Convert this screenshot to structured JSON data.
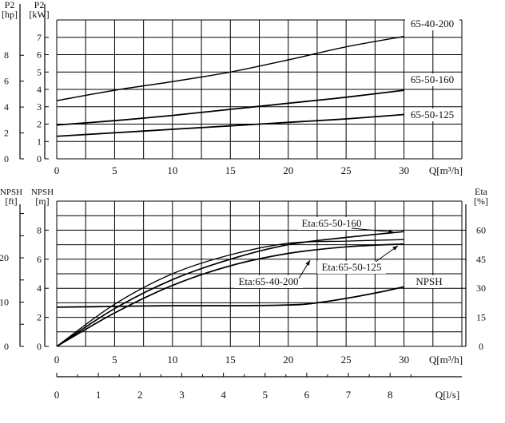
{
  "chart_data": [
    {
      "type": "line",
      "panel": "power",
      "left_units": {
        "top": "P2",
        "bottom": "[hp]"
      },
      "right_units": {
        "top": "P2",
        "bottom": "[kW]"
      },
      "x_label": "Q[m³/h]",
      "x_ticks": [
        0,
        5,
        10,
        15,
        20,
        25,
        30
      ],
      "y_ticks": [
        0,
        1,
        2,
        3,
        4,
        5,
        6,
        7
      ],
      "hp_ticks": [
        0,
        2,
        4,
        6,
        8
      ],
      "xlim": [
        0,
        35
      ],
      "ylim": [
        0,
        8
      ],
      "grid": true,
      "series": [
        {
          "name": "65-40-200",
          "x": [
            0,
            5,
            10,
            15,
            20,
            25,
            30
          ],
          "y": [
            3.35,
            3.95,
            4.45,
            5.0,
            5.7,
            6.45,
            7.05
          ]
        },
        {
          "name": "65-50-160",
          "x": [
            0,
            5,
            10,
            15,
            20,
            25,
            30
          ],
          "y": [
            1.95,
            2.2,
            2.5,
            2.85,
            3.2,
            3.55,
            3.95
          ]
        },
        {
          "name": "65-50-125",
          "x": [
            0,
            5,
            10,
            15,
            20,
            25,
            30
          ],
          "y": [
            1.3,
            1.5,
            1.7,
            1.9,
            2.1,
            2.3,
            2.55
          ]
        }
      ]
    },
    {
      "type": "line",
      "panel": "npsh-efficiency",
      "left_units": {
        "top": "NPSH",
        "bottom": "[ft]"
      },
      "right_units": {
        "top": "NPSH",
        "bottom": "[m]"
      },
      "eta_units": {
        "top": "Eta",
        "bottom": "[%]"
      },
      "x_label": "Q[m³/h]",
      "x2_label": "Q[l/s]",
      "x_ticks": [
        0,
        5,
        10,
        15,
        20,
        25,
        30
      ],
      "x2_ticks": [
        0,
        1,
        2,
        3,
        4,
        5,
        6,
        7,
        8
      ],
      "y_ticks": [
        0,
        2,
        4,
        6,
        8
      ],
      "ft_ticks": [
        0,
        10,
        20
      ],
      "eta_ticks": [
        0,
        15,
        30,
        45,
        60
      ],
      "xlim": [
        0,
        35
      ],
      "ylim": [
        0,
        10
      ],
      "grid": true,
      "series": [
        {
          "name": "Eta:65-50-160",
          "x": [
            0,
            5,
            10,
            15,
            20,
            25,
            30
          ],
          "y": [
            0,
            2.6,
            4.6,
            6.0,
            7.0,
            7.5,
            7.9
          ]
        },
        {
          "name": "Eta:65-50-125",
          "x": [
            0,
            5,
            10,
            15,
            20,
            25,
            30
          ],
          "y": [
            0,
            2.3,
            4.2,
            5.55,
            6.4,
            6.85,
            7.05
          ]
        },
        {
          "name": "Eta:65-40-200",
          "x": [
            0,
            5,
            10,
            15,
            20,
            25,
            30
          ],
          "y": [
            0,
            2.9,
            5.0,
            6.3,
            7.1,
            7.25,
            7.35
          ]
        },
        {
          "name": "NPSH",
          "x": [
            0,
            5,
            10,
            15,
            20,
            22,
            25,
            28,
            30
          ],
          "y": [
            2.7,
            2.75,
            2.8,
            2.8,
            2.85,
            2.95,
            3.3,
            3.75,
            4.1
          ]
        }
      ]
    }
  ]
}
